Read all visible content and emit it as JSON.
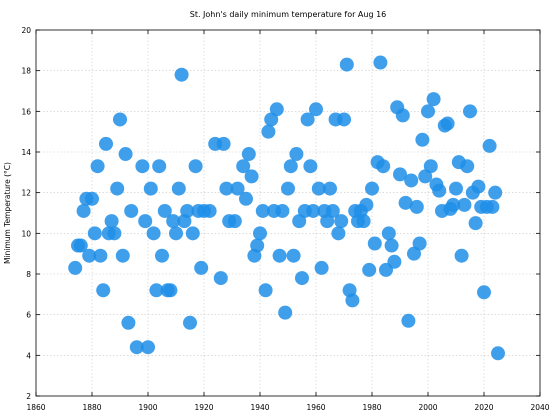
{
  "chart_data": {
    "type": "scatter",
    "title": "St. John's daily minimum temperature for Aug 16",
    "xlabel": "",
    "ylabel": "Minimum Temperature (°C)",
    "xlim": [
      1860,
      2040
    ],
    "ylim": [
      2,
      20
    ],
    "xticks": [
      "1860",
      "1880",
      "1900",
      "1920",
      "1940",
      "1960",
      "1980",
      "2000",
      "2020",
      "2040"
    ],
    "yticks": [
      "2",
      "4",
      "6",
      "8",
      "10",
      "12",
      "14",
      "16",
      "18",
      "20"
    ],
    "grid": true,
    "marker_color": "#1e8ee8",
    "points": [
      [
        1874,
        8.3
      ],
      [
        1875,
        9.4
      ],
      [
        1876,
        9.4
      ],
      [
        1877,
        11.1
      ],
      [
        1878,
        11.7
      ],
      [
        1879,
        8.9
      ],
      [
        1880,
        11.7
      ],
      [
        1881,
        10.0
      ],
      [
        1882,
        13.3
      ],
      [
        1883,
        8.9
      ],
      [
        1884,
        7.2
      ],
      [
        1885,
        14.4
      ],
      [
        1886,
        10.0
      ],
      [
        1887,
        10.6
      ],
      [
        1888,
        10.0
      ],
      [
        1889,
        12.2
      ],
      [
        1890,
        15.6
      ],
      [
        1891,
        8.9
      ],
      [
        1892,
        13.9
      ],
      [
        1893,
        5.6
      ],
      [
        1894,
        11.1
      ],
      [
        1896,
        4.4
      ],
      [
        1898,
        13.3
      ],
      [
        1899,
        10.6
      ],
      [
        1900,
        4.4
      ],
      [
        1901,
        12.2
      ],
      [
        1902,
        10.0
      ],
      [
        1903,
        7.2
      ],
      [
        1904,
        13.3
      ],
      [
        1905,
        8.9
      ],
      [
        1906,
        11.1
      ],
      [
        1907,
        7.2
      ],
      [
        1908,
        7.2
      ],
      [
        1909,
        10.6
      ],
      [
        1910,
        10.0
      ],
      [
        1911,
        12.2
      ],
      [
        1912,
        17.8
      ],
      [
        1913,
        10.6
      ],
      [
        1914,
        11.1
      ],
      [
        1915,
        5.6
      ],
      [
        1916,
        10.0
      ],
      [
        1917,
        13.3
      ],
      [
        1918,
        11.1
      ],
      [
        1919,
        8.3
      ],
      [
        1920,
        11.1
      ],
      [
        1922,
        11.1
      ],
      [
        1924,
        14.4
      ],
      [
        1926,
        7.8
      ],
      [
        1927,
        14.4
      ],
      [
        1928,
        12.2
      ],
      [
        1929,
        10.6
      ],
      [
        1931,
        10.6
      ],
      [
        1932,
        12.2
      ],
      [
        1934,
        13.3
      ],
      [
        1935,
        11.7
      ],
      [
        1936,
        13.9
      ],
      [
        1937,
        12.8
      ],
      [
        1938,
        8.9
      ],
      [
        1939,
        9.4
      ],
      [
        1940,
        10.0
      ],
      [
        1941,
        11.1
      ],
      [
        1942,
        7.2
      ],
      [
        1943,
        15.0
      ],
      [
        1944,
        15.6
      ],
      [
        1945,
        11.1
      ],
      [
        1946,
        16.1
      ],
      [
        1947,
        8.9
      ],
      [
        1948,
        11.1
      ],
      [
        1949,
        6.1
      ],
      [
        1950,
        12.2
      ],
      [
        1951,
        13.3
      ],
      [
        1952,
        8.9
      ],
      [
        1953,
        13.9
      ],
      [
        1954,
        10.6
      ],
      [
        1955,
        7.8
      ],
      [
        1956,
        11.1
      ],
      [
        1957,
        15.6
      ],
      [
        1958,
        13.3
      ],
      [
        1959,
        11.1
      ],
      [
        1960,
        16.1
      ],
      [
        1961,
        12.2
      ],
      [
        1962,
        8.3
      ],
      [
        1963,
        11.1
      ],
      [
        1964,
        10.6
      ],
      [
        1965,
        12.2
      ],
      [
        1966,
        11.1
      ],
      [
        1967,
        15.6
      ],
      [
        1968,
        10.0
      ],
      [
        1969,
        10.6
      ],
      [
        1970,
        15.6
      ],
      [
        1971,
        18.3
      ],
      [
        1972,
        7.2
      ],
      [
        1973,
        6.7
      ],
      [
        1974,
        11.1
      ],
      [
        1975,
        10.6
      ],
      [
        1976,
        11.1
      ],
      [
        1977,
        10.6
      ],
      [
        1978,
        11.4
      ],
      [
        1979,
        8.2
      ],
      [
        1980,
        12.2
      ],
      [
        1981,
        9.5
      ],
      [
        1982,
        13.5
      ],
      [
        1983,
        18.4
      ],
      [
        1984,
        13.3
      ],
      [
        1985,
        8.2
      ],
      [
        1986,
        10.0
      ],
      [
        1987,
        9.4
      ],
      [
        1988,
        8.6
      ],
      [
        1989,
        16.2
      ],
      [
        1990,
        12.9
      ],
      [
        1991,
        15.8
      ],
      [
        1992,
        11.5
      ],
      [
        1993,
        5.7
      ],
      [
        1994,
        12.6
      ],
      [
        1995,
        9.0
      ],
      [
        1996,
        11.3
      ],
      [
        1997,
        9.5
      ],
      [
        1998,
        14.6
      ],
      [
        1999,
        12.8
      ],
      [
        2000,
        16.0
      ],
      [
        2001,
        13.3
      ],
      [
        2002,
        16.6
      ],
      [
        2003,
        12.4
      ],
      [
        2004,
        12.1
      ],
      [
        2005,
        11.1
      ],
      [
        2006,
        15.3
      ],
      [
        2007,
        15.4
      ],
      [
        2008,
        11.2
      ],
      [
        2009,
        11.4
      ],
      [
        2010,
        12.2
      ],
      [
        2011,
        13.5
      ],
      [
        2012,
        8.9
      ],
      [
        2013,
        11.4
      ],
      [
        2014,
        13.3
      ],
      [
        2015,
        16.0
      ],
      [
        2016,
        12.0
      ],
      [
        2017,
        10.5
      ],
      [
        2018,
        12.3
      ],
      [
        2019,
        11.3
      ],
      [
        2020,
        7.1
      ],
      [
        2021,
        11.3
      ],
      [
        2022,
        14.3
      ],
      [
        2023,
        11.3
      ],
      [
        2024,
        12.0
      ],
      [
        2025,
        4.1
      ]
    ]
  }
}
